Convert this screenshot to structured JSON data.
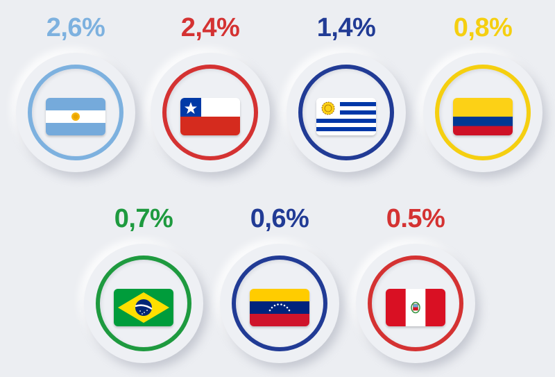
{
  "items": [
    {
      "country": "argentina",
      "value": "2,6%",
      "color": "#7db1df"
    },
    {
      "country": "chile",
      "value": "2,4%",
      "color": "#d43232"
    },
    {
      "country": "uruguay",
      "value": "1,4%",
      "color": "#213b95"
    },
    {
      "country": "colombia",
      "value": "0,8%",
      "color": "#f5cf10"
    },
    {
      "country": "brazil",
      "value": "0,7%",
      "color": "#1e9a3f"
    },
    {
      "country": "venezuela",
      "value": "0,6%",
      "color": "#213b95"
    },
    {
      "country": "peru",
      "value": "0.5%",
      "color": "#d43232"
    }
  ]
}
